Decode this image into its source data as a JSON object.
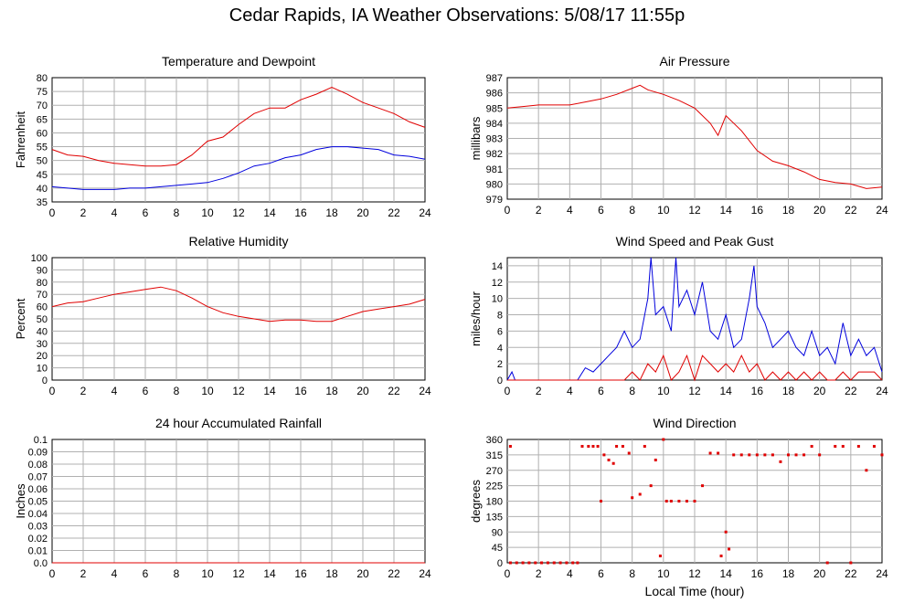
{
  "page": {
    "title": "Cedar Rapids, IA Weather Observations: 5/08/17 11:55p"
  },
  "colors": {
    "grid": "#b0b0b0",
    "frame": "#000000",
    "red": "#e00000",
    "blue": "#0000dd"
  },
  "x_axis": {
    "ticks": [
      0,
      2,
      4,
      6,
      8,
      10,
      12,
      14,
      16,
      18,
      20,
      22,
      24
    ],
    "xlabel": "Local Time (hour)"
  },
  "chart_data": [
    {
      "id": "temperature",
      "type": "line",
      "title": "Temperature and Dewpoint",
      "ylabel": "Fahrenheit",
      "xlim": [
        0,
        24
      ],
      "ylim": [
        35,
        80
      ],
      "yticks": [
        35,
        40,
        45,
        50,
        55,
        60,
        65,
        70,
        75,
        80
      ],
      "series": [
        {
          "color": "red",
          "points": [
            [
              0,
              54
            ],
            [
              1,
              52
            ],
            [
              2,
              51.5
            ],
            [
              3,
              50
            ],
            [
              4,
              49
            ],
            [
              5,
              48.5
            ],
            [
              6,
              48
            ],
            [
              7,
              48
            ],
            [
              8,
              48.5
            ],
            [
              9,
              52
            ],
            [
              10,
              57
            ],
            [
              11,
              58.5
            ],
            [
              12,
              63
            ],
            [
              13,
              67
            ],
            [
              14,
              69
            ],
            [
              15,
              69
            ],
            [
              16,
              72
            ],
            [
              17,
              74
            ],
            [
              18,
              76.5
            ],
            [
              19,
              74
            ],
            [
              20,
              71
            ],
            [
              21,
              69
            ],
            [
              22,
              67
            ],
            [
              23,
              64
            ],
            [
              24,
              62
            ]
          ]
        },
        {
          "color": "blue",
          "points": [
            [
              0,
              40.5
            ],
            [
              1,
              40
            ],
            [
              2,
              39.5
            ],
            [
              3,
              39.5
            ],
            [
              4,
              39.5
            ],
            [
              5,
              40
            ],
            [
              6,
              40
            ],
            [
              7,
              40.5
            ],
            [
              8,
              41
            ],
            [
              9,
              41.5
            ],
            [
              10,
              42
            ],
            [
              11,
              43.5
            ],
            [
              12,
              45.5
            ],
            [
              13,
              48
            ],
            [
              14,
              49
            ],
            [
              15,
              51
            ],
            [
              16,
              52
            ],
            [
              17,
              54
            ],
            [
              18,
              55
            ],
            [
              19,
              55
            ],
            [
              20,
              54.5
            ],
            [
              21,
              54
            ],
            [
              22,
              52
            ],
            [
              23,
              51.5
            ],
            [
              24,
              50.5
            ]
          ]
        }
      ]
    },
    {
      "id": "pressure",
      "type": "line",
      "title": "Air Pressure",
      "ylabel": "millibars",
      "xlim": [
        0,
        24
      ],
      "ylim": [
        979,
        987
      ],
      "yticks": [
        979,
        980,
        981,
        982,
        983,
        984,
        985,
        986,
        987
      ],
      "series": [
        {
          "color": "red",
          "points": [
            [
              0,
              985
            ],
            [
              1,
              985.1
            ],
            [
              2,
              985.2
            ],
            [
              3,
              985.2
            ],
            [
              4,
              985.2
            ],
            [
              5,
              985.4
            ],
            [
              6,
              985.6
            ],
            [
              7,
              985.9
            ],
            [
              8,
              986.3
            ],
            [
              8.5,
              986.5
            ],
            [
              9,
              986.2
            ],
            [
              10,
              985.9
            ],
            [
              11,
              985.5
            ],
            [
              12,
              985
            ],
            [
              13,
              984
            ],
            [
              13.5,
              983.2
            ],
            [
              14,
              984.5
            ],
            [
              15,
              983.5
            ],
            [
              16,
              982.2
            ],
            [
              17,
              981.5
            ],
            [
              18,
              981.2
            ],
            [
              19,
              980.8
            ],
            [
              20,
              980.3
            ],
            [
              21,
              980.1
            ],
            [
              22,
              980
            ],
            [
              23,
              979.7
            ],
            [
              24,
              979.8
            ]
          ]
        }
      ]
    },
    {
      "id": "humidity",
      "type": "line",
      "title": "Relative Humidity",
      "ylabel": "Percent",
      "xlim": [
        0,
        24
      ],
      "ylim": [
        0,
        100
      ],
      "yticks": [
        0,
        10,
        20,
        30,
        40,
        50,
        60,
        70,
        80,
        90,
        100
      ],
      "series": [
        {
          "color": "red",
          "points": [
            [
              0,
              60
            ],
            [
              1,
              63
            ],
            [
              2,
              64
            ],
            [
              3,
              67
            ],
            [
              4,
              70
            ],
            [
              5,
              72
            ],
            [
              6,
              74
            ],
            [
              7,
              76
            ],
            [
              8,
              73
            ],
            [
              9,
              67
            ],
            [
              10,
              60
            ],
            [
              11,
              55
            ],
            [
              12,
              52
            ],
            [
              13,
              50
            ],
            [
              14,
              48
            ],
            [
              15,
              49
            ],
            [
              16,
              49
            ],
            [
              17,
              48
            ],
            [
              18,
              48
            ],
            [
              19,
              52
            ],
            [
              20,
              56
            ],
            [
              21,
              58
            ],
            [
              22,
              60
            ],
            [
              23,
              62
            ],
            [
              24,
              66
            ]
          ]
        }
      ]
    },
    {
      "id": "wind-speed",
      "type": "line",
      "title": "Wind Speed and Peak Gust",
      "ylabel": "miles/hour",
      "xlim": [
        0,
        24
      ],
      "ylim": [
        0,
        15
      ],
      "yticks": [
        0,
        2,
        4,
        6,
        8,
        10,
        12,
        14
      ],
      "series": [
        {
          "color": "blue",
          "points": [
            [
              0,
              0
            ],
            [
              0.3,
              1
            ],
            [
              0.5,
              0
            ],
            [
              4.5,
              0
            ],
            [
              5,
              1.5
            ],
            [
              5.5,
              1
            ],
            [
              6,
              2
            ],
            [
              6.5,
              3
            ],
            [
              7,
              4
            ],
            [
              7.5,
              6
            ],
            [
              8,
              4
            ],
            [
              8.5,
              5
            ],
            [
              9,
              10
            ],
            [
              9.2,
              15
            ],
            [
              9.5,
              8
            ],
            [
              10,
              9
            ],
            [
              10.5,
              6
            ],
            [
              10.8,
              15
            ],
            [
              11,
              9
            ],
            [
              11.5,
              11
            ],
            [
              12,
              8
            ],
            [
              12.5,
              12
            ],
            [
              13,
              6
            ],
            [
              13.5,
              5
            ],
            [
              14,
              8
            ],
            [
              14.5,
              4
            ],
            [
              15,
              5
            ],
            [
              15.5,
              10
            ],
            [
              15.8,
              14
            ],
            [
              16,
              9
            ],
            [
              16.5,
              7
            ],
            [
              17,
              4
            ],
            [
              17.5,
              5
            ],
            [
              18,
              6
            ],
            [
              18.5,
              4
            ],
            [
              19,
              3
            ],
            [
              19.5,
              6
            ],
            [
              20,
              3
            ],
            [
              20.5,
              4
            ],
            [
              21,
              2
            ],
            [
              21.5,
              7
            ],
            [
              22,
              3
            ],
            [
              22.5,
              5
            ],
            [
              23,
              3
            ],
            [
              23.5,
              4
            ],
            [
              24,
              1
            ]
          ]
        },
        {
          "color": "red",
          "points": [
            [
              0,
              0
            ],
            [
              7.5,
              0
            ],
            [
              8,
              1
            ],
            [
              8.5,
              0
            ],
            [
              9,
              2
            ],
            [
              9.5,
              1
            ],
            [
              10,
              3
            ],
            [
              10.5,
              0
            ],
            [
              11,
              1
            ],
            [
              11.5,
              3
            ],
            [
              12,
              0
            ],
            [
              12.5,
              3
            ],
            [
              13,
              2
            ],
            [
              13.5,
              1
            ],
            [
              14,
              2
            ],
            [
              14.5,
              1
            ],
            [
              15,
              3
            ],
            [
              15.5,
              1
            ],
            [
              16,
              2
            ],
            [
              16.5,
              0
            ],
            [
              17,
              1
            ],
            [
              17.5,
              0
            ],
            [
              18,
              1
            ],
            [
              18.5,
              0
            ],
            [
              19,
              1
            ],
            [
              19.5,
              0
            ],
            [
              20,
              1
            ],
            [
              20.5,
              0
            ],
            [
              21,
              0
            ],
            [
              21.5,
              1
            ],
            [
              22,
              0
            ],
            [
              22.5,
              1
            ],
            [
              23,
              1
            ],
            [
              23.5,
              1
            ],
            [
              24,
              0
            ]
          ]
        }
      ]
    },
    {
      "id": "rainfall",
      "type": "line",
      "title": "24 hour Accumulated Rainfall",
      "ylabel": "Inches",
      "xlim": [
        0,
        24
      ],
      "ylim": [
        0,
        0.1
      ],
      "yticks": [
        "0.0",
        "0.01",
        "0.02",
        "0.03",
        "0.04",
        "0.05",
        "0.06",
        "0.07",
        "0.08",
        "0.09",
        "0.1"
      ],
      "series": [
        {
          "color": "red",
          "points": [
            [
              0,
              0
            ],
            [
              24,
              0
            ]
          ]
        }
      ]
    },
    {
      "id": "wind-direction",
      "type": "scatter",
      "title": "Wind Direction",
      "ylabel": "degrees",
      "xlim": [
        0,
        24
      ],
      "ylim": [
        0,
        360
      ],
      "yticks": [
        0,
        45,
        90,
        135,
        180,
        225,
        270,
        315,
        360
      ],
      "series": [
        {
          "color": "red",
          "points": [
            [
              0.2,
              340
            ],
            [
              0.2,
              0
            ],
            [
              0.6,
              0
            ],
            [
              1,
              0
            ],
            [
              1.4,
              0
            ],
            [
              1.8,
              0
            ],
            [
              2.2,
              0
            ],
            [
              2.6,
              0
            ],
            [
              3,
              0
            ],
            [
              3.4,
              0
            ],
            [
              3.8,
              0
            ],
            [
              4.2,
              0
            ],
            [
              4.5,
              0
            ],
            [
              4.8,
              340
            ],
            [
              5.2,
              340
            ],
            [
              5.5,
              340
            ],
            [
              5.8,
              340
            ],
            [
              6,
              180
            ],
            [
              6.2,
              315
            ],
            [
              6.5,
              300
            ],
            [
              6.8,
              290
            ],
            [
              7,
              340
            ],
            [
              7.4,
              340
            ],
            [
              7.8,
              320
            ],
            [
              8,
              190
            ],
            [
              8.5,
              200
            ],
            [
              8.8,
              340
            ],
            [
              9.2,
              225
            ],
            [
              9.5,
              300
            ],
            [
              9.8,
              20
            ],
            [
              10,
              360
            ],
            [
              10.2,
              180
            ],
            [
              10.5,
              180
            ],
            [
              11,
              180
            ],
            [
              11.5,
              180
            ],
            [
              12,
              180
            ],
            [
              12.5,
              225
            ],
            [
              13,
              320
            ],
            [
              13.5,
              320
            ],
            [
              13.7,
              20
            ],
            [
              14,
              90
            ],
            [
              14.2,
              40
            ],
            [
              14.5,
              315
            ],
            [
              15,
              315
            ],
            [
              15.5,
              315
            ],
            [
              16,
              315
            ],
            [
              16.5,
              315
            ],
            [
              17,
              315
            ],
            [
              17.5,
              295
            ],
            [
              18,
              315
            ],
            [
              18.5,
              315
            ],
            [
              19,
              315
            ],
            [
              19.5,
              340
            ],
            [
              20,
              315
            ],
            [
              20.5,
              0
            ],
            [
              21,
              340
            ],
            [
              21.5,
              340
            ],
            [
              22,
              0
            ],
            [
              22.5,
              340
            ],
            [
              23,
              270
            ],
            [
              23.5,
              340
            ],
            [
              24,
              315
            ]
          ]
        }
      ]
    }
  ]
}
